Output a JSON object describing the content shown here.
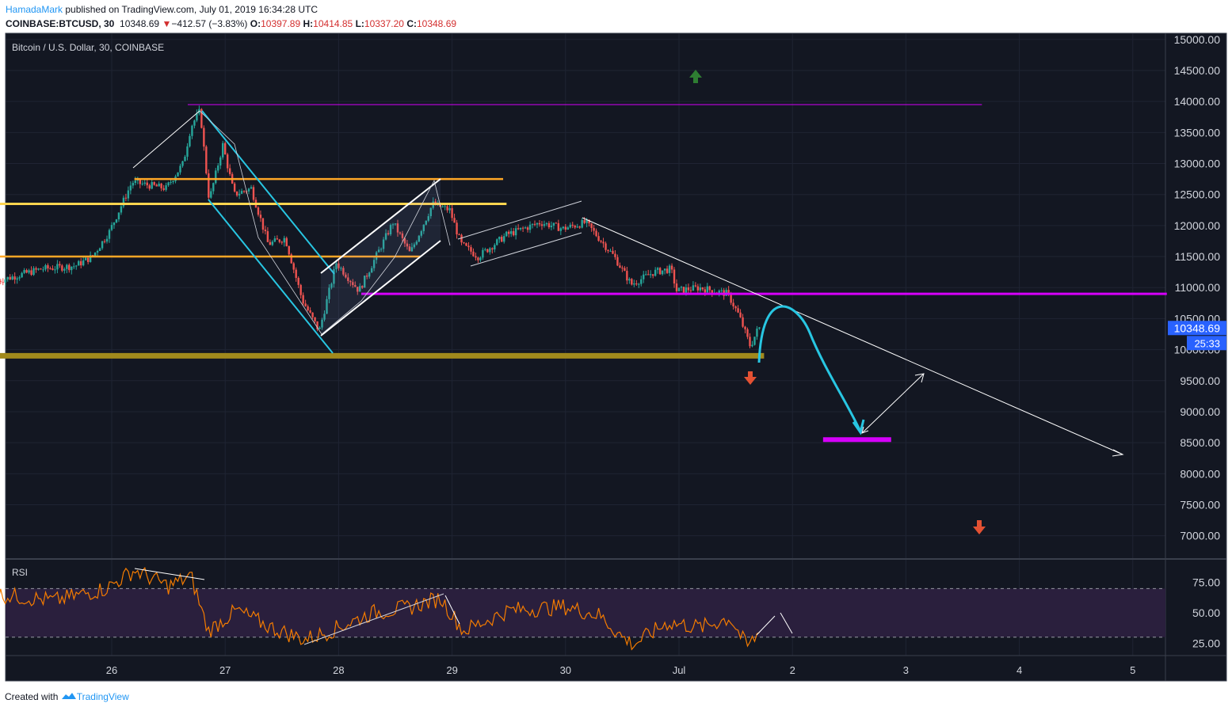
{
  "header": {
    "author": "HamadaMark",
    "published_text": " published on TradingView.com, July 01, 2019 16:34:28 UTC",
    "symbol": "COINBASE:BTCUSD, 30",
    "last": "10348.69",
    "change_arrow": "▼",
    "change": "−412.57 (−3.83%)",
    "open_label": "O:",
    "open": "10397.89",
    "high_label": "H:",
    "high": "10414.85",
    "low_label": "L:",
    "low": "10337.20",
    "close_label": "C:",
    "close": "10348.69"
  },
  "footer": {
    "created_with": "Created with",
    "brand": "TradingView",
    "logo_icon": "tradingview-logo-icon"
  },
  "colors": {
    "background": "#131722",
    "grid": "#1f2433",
    "axis_text": "#d1d4dc",
    "candle_up": "#26a69a",
    "candle_down": "#ef5350",
    "orange": "#ffa726",
    "yellow": "#ffd54f",
    "magenta": "#d500f9",
    "gold": "#a0891c",
    "cyan": "#28c6e2",
    "rsi_line": "#f57c00",
    "rsi_band": "#2a1f3d",
    "last_price_bg": "#2962ff",
    "arrow_up": "#2e7d32",
    "arrow_down": "#e35133"
  },
  "chart_data": [
    {
      "type": "candlestick",
      "title": "Bitcoin / U.S. Dollar, 30, COINBASE",
      "x_ticks": [
        "26",
        "27",
        "28",
        "29",
        "30",
        "Jul",
        "2",
        "3",
        "4",
        "5"
      ],
      "y_ticks": [
        "15000.00",
        "14500.00",
        "14000.00",
        "13500.00",
        "13000.00",
        "12500.00",
        "12000.00",
        "11500.00",
        "11000.00",
        "10500.00",
        "10000.00",
        "9500.00",
        "9000.00",
        "8500.00",
        "8000.00",
        "7500.00",
        "7000.00"
      ],
      "ylim": [
        6600,
        15100
      ],
      "last_price": "10348.69",
      "countdown": "25:33",
      "price_path": [
        {
          "t": 25.0,
          "p": 11100
        },
        {
          "t": 25.4,
          "p": 11300
        },
        {
          "t": 25.7,
          "p": 11350
        },
        {
          "t": 25.85,
          "p": 11500
        },
        {
          "t": 26.0,
          "p": 11900
        },
        {
          "t": 26.2,
          "p": 12700
        },
        {
          "t": 26.5,
          "p": 12600
        },
        {
          "t": 26.65,
          "p": 13000
        },
        {
          "t": 26.72,
          "p": 13600
        },
        {
          "t": 26.8,
          "p": 13850
        },
        {
          "t": 26.88,
          "p": 12400
        },
        {
          "t": 27.0,
          "p": 13300
        },
        {
          "t": 27.1,
          "p": 12500
        },
        {
          "t": 27.25,
          "p": 12600
        },
        {
          "t": 27.4,
          "p": 11700
        },
        {
          "t": 27.55,
          "p": 11800
        },
        {
          "t": 27.7,
          "p": 10800
        },
        {
          "t": 27.85,
          "p": 10300
        },
        {
          "t": 28.0,
          "p": 11400
        },
        {
          "t": 28.2,
          "p": 10950
        },
        {
          "t": 28.35,
          "p": 11500
        },
        {
          "t": 28.5,
          "p": 12050
        },
        {
          "t": 28.65,
          "p": 11550
        },
        {
          "t": 28.85,
          "p": 12350
        },
        {
          "t": 29.0,
          "p": 12250
        },
        {
          "t": 29.1,
          "p": 11700
        },
        {
          "t": 29.25,
          "p": 11500
        },
        {
          "t": 29.5,
          "p": 11850
        },
        {
          "t": 29.8,
          "p": 12050
        },
        {
          "t": 30.0,
          "p": 11950
        },
        {
          "t": 30.2,
          "p": 12050
        },
        {
          "t": 30.45,
          "p": 11500
        },
        {
          "t": 30.6,
          "p": 11050
        },
        {
          "t": 30.8,
          "p": 11250
        },
        {
          "t": 30.95,
          "p": 11300
        },
        {
          "t": 31.0,
          "p": 10950
        },
        {
          "t": 31.2,
          "p": 11000
        },
        {
          "t": 31.45,
          "p": 10900
        },
        {
          "t": 31.55,
          "p": 10550
        },
        {
          "t": 31.65,
          "p": 10050
        },
        {
          "t": 31.72,
          "p": 10349
        }
      ],
      "levels": [
        {
          "name": "resistance-top",
          "price": 13950,
          "from": 26.67,
          "to": 33.67,
          "color": "#d500f9"
        },
        {
          "name": "orange-12750",
          "price": 12750,
          "from": 26.2,
          "to": 29.45,
          "color": "#ffa726"
        },
        {
          "name": "yellow-12350",
          "price": 12350,
          "from": 25.0,
          "to": 29.48,
          "color": "#ffd54f"
        },
        {
          "name": "orange-11500",
          "price": 11500,
          "from": 25.0,
          "to": 28.72,
          "color": "#ffa726"
        },
        {
          "name": "magenta-10900",
          "price": 10900,
          "from": 28.2,
          "to": 35.3,
          "color": "#d500f9"
        },
        {
          "name": "gold-support",
          "price": 9900,
          "from": 25.0,
          "to": 31.75,
          "color": "#a0891c"
        },
        {
          "name": "target-8550",
          "price": 8550,
          "from": 32.27,
          "to": 32.87,
          "color": "#d500f9"
        }
      ]
    },
    {
      "type": "line",
      "title": "RSI",
      "y_ticks": [
        "75.00",
        "50.00",
        "25.00"
      ],
      "ylim": [
        15,
        90
      ],
      "band": [
        30,
        70
      ],
      "rsi_path": [
        {
          "t": 25.0,
          "v": 65
        },
        {
          "t": 25.5,
          "v": 60
        },
        {
          "t": 25.95,
          "v": 70
        },
        {
          "t": 26.2,
          "v": 85
        },
        {
          "t": 26.5,
          "v": 72
        },
        {
          "t": 26.7,
          "v": 80
        },
        {
          "t": 26.85,
          "v": 35
        },
        {
          "t": 27.1,
          "v": 52
        },
        {
          "t": 27.4,
          "v": 38
        },
        {
          "t": 27.7,
          "v": 28
        },
        {
          "t": 27.9,
          "v": 34
        },
        {
          "t": 28.3,
          "v": 50
        },
        {
          "t": 28.6,
          "v": 54
        },
        {
          "t": 28.9,
          "v": 62
        },
        {
          "t": 29.1,
          "v": 35
        },
        {
          "t": 29.5,
          "v": 52
        },
        {
          "t": 30.0,
          "v": 55
        },
        {
          "t": 30.3,
          "v": 48
        },
        {
          "t": 30.5,
          "v": 30
        },
        {
          "t": 30.6,
          "v": 24
        },
        {
          "t": 30.9,
          "v": 42
        },
        {
          "t": 31.2,
          "v": 38
        },
        {
          "t": 31.45,
          "v": 46
        },
        {
          "t": 31.6,
          "v": 22
        },
        {
          "t": 31.72,
          "v": 35
        }
      ]
    }
  ]
}
